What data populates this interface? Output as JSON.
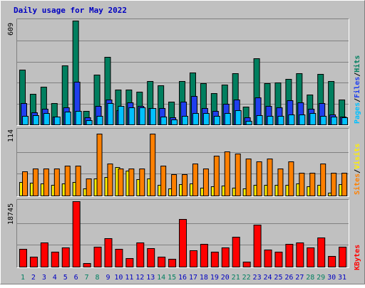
{
  "title": "Daily usage for May 2022",
  "colors": {
    "background": "#c0c0c0",
    "title": "#0000c0",
    "hits": "#007f5f",
    "files": "#1f3fef",
    "pages": "#00c0ff",
    "visits": "#ff8000",
    "sites": "#ffef00",
    "kbytes": "#ff0000",
    "weekend_day": "#007f5f",
    "weekday": "#0000c0"
  },
  "chart_data": [
    {
      "type": "bar",
      "name": "hits-files-pages",
      "y_max_label": "609",
      "ylim": [
        0,
        609
      ],
      "legend": [
        "Pages",
        "Files",
        "Hits"
      ],
      "categories": [
        "1",
        "2",
        "3",
        "4",
        "5",
        "6",
        "7",
        "8",
        "9",
        "10",
        "11",
        "12",
        "13",
        "14",
        "15",
        "16",
        "17",
        "18",
        "19",
        "20",
        "21",
        "22",
        "23",
        "24",
        "25",
        "26",
        "27",
        "28",
        "29",
        "30",
        "31"
      ],
      "series": [
        {
          "name": "Hits",
          "values": [
            320,
            180,
            220,
            125,
            345,
            609,
            80,
            290,
            395,
            205,
            205,
            190,
            255,
            230,
            135,
            255,
            305,
            240,
            185,
            235,
            300,
            105,
            390,
            240,
            245,
            265,
            300,
            175,
            295,
            255,
            145
          ]
        },
        {
          "name": "Files",
          "values": [
            125,
            70,
            90,
            45,
            100,
            250,
            40,
            110,
            145,
            85,
            130,
            110,
            95,
            95,
            40,
            135,
            165,
            95,
            80,
            120,
            145,
            40,
            160,
            110,
            100,
            140,
            130,
            90,
            125,
            60,
            45
          ]
        },
        {
          "name": "Pages",
          "values": [
            50,
            55,
            65,
            45,
            75,
            80,
            25,
            50,
            125,
            110,
            100,
            100,
            95,
            45,
            30,
            50,
            65,
            65,
            50,
            65,
            85,
            20,
            55,
            50,
            50,
            60,
            60,
            65,
            50,
            45,
            40
          ]
        }
      ]
    },
    {
      "type": "bar",
      "name": "visits-sites",
      "y_max_label": "114",
      "ylim": [
        0,
        114
      ],
      "legend": [
        "Sites",
        "Visits"
      ],
      "categories": [
        "1",
        "2",
        "3",
        "4",
        "5",
        "6",
        "7",
        "8",
        "9",
        "10",
        "11",
        "12",
        "13",
        "14",
        "15",
        "16",
        "17",
        "18",
        "19",
        "20",
        "21",
        "22",
        "23",
        "24",
        "25",
        "26",
        "27",
        "28",
        "29",
        "30",
        "31"
      ],
      "series": [
        {
          "name": "Visits",
          "values": [
            42,
            47,
            47,
            47,
            52,
            52,
            30,
            108,
            56,
            47,
            47,
            47,
            108,
            52,
            37,
            37,
            56,
            47,
            70,
            77,
            73,
            65,
            60,
            65,
            47,
            60,
            40,
            40,
            56,
            40,
            40
          ]
        },
        {
          "name": "Sites",
          "values": [
            24,
            22,
            21,
            19,
            21,
            23,
            12,
            30,
            32,
            49,
            43,
            29,
            30,
            18,
            12,
            20,
            21,
            14,
            16,
            17,
            14,
            12,
            19,
            18,
            19,
            19,
            21,
            16,
            19,
            5,
            20
          ]
        }
      ]
    },
    {
      "type": "bar",
      "name": "kbytes",
      "y_max_label": "18745",
      "ylim": [
        0,
        18745
      ],
      "legend": [
        "KBytes"
      ],
      "categories": [
        "1",
        "2",
        "3",
        "4",
        "5",
        "6",
        "7",
        "8",
        "9",
        "10",
        "11",
        "12",
        "13",
        "14",
        "15",
        "16",
        "17",
        "18",
        "19",
        "20",
        "21",
        "22",
        "23",
        "24",
        "25",
        "26",
        "27",
        "28",
        "29",
        "30",
        "31"
      ],
      "series": [
        {
          "name": "KBytes",
          "values": [
            5000,
            2800,
            7000,
            4300,
            5600,
            18745,
            1000,
            5800,
            8100,
            5000,
            2500,
            7000,
            5200,
            2800,
            2200,
            13700,
            4700,
            6500,
            4200,
            5400,
            8500,
            1500,
            12000,
            4800,
            4300,
            6500,
            7000,
            5500,
            8300,
            3000,
            5800
          ]
        }
      ]
    }
  ],
  "x_axis": {
    "labels": [
      "1",
      "2",
      "3",
      "4",
      "5",
      "6",
      "7",
      "8",
      "9",
      "10",
      "11",
      "12",
      "13",
      "14",
      "15",
      "16",
      "17",
      "18",
      "19",
      "20",
      "21",
      "22",
      "23",
      "24",
      "25",
      "26",
      "27",
      "28",
      "29",
      "30",
      "31"
    ],
    "weekend_days": [
      "1",
      "7",
      "8",
      "14",
      "15",
      "21",
      "22",
      "28",
      "29"
    ]
  },
  "legends": {
    "pages": "Pages",
    "files": "Files",
    "hits": "Hits",
    "sites": "Sites",
    "visits": "Visits",
    "kbytes": "KBytes",
    "sep": "/"
  },
  "y_labels": {
    "top": "609",
    "middle": "114",
    "bottom": "18745"
  }
}
